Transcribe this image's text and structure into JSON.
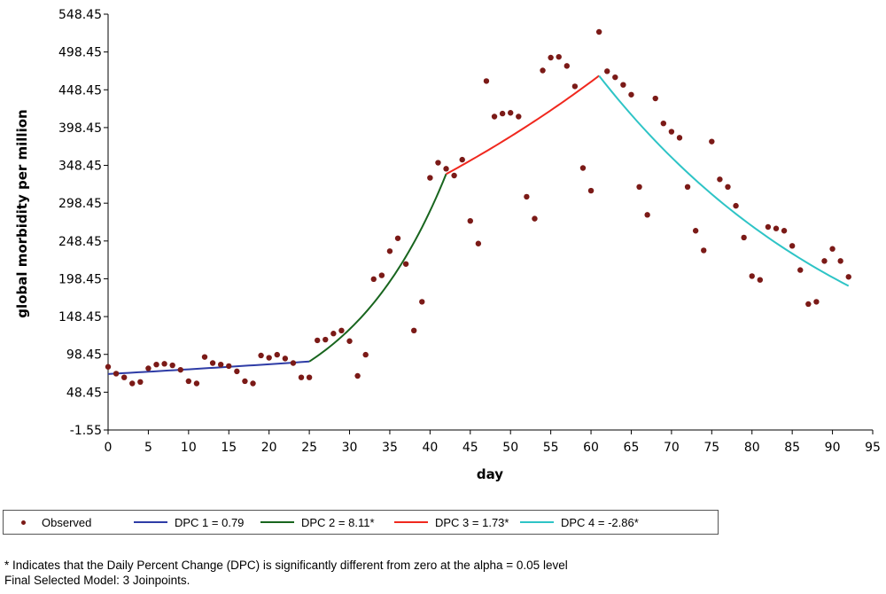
{
  "chart_data": {
    "type": "scatter",
    "xlabel": "day",
    "ylabel": "global morbidity per million",
    "xlim": [
      0,
      95
    ],
    "ylim": [
      -1.55,
      548.45
    ],
    "xticks": [
      "0",
      "5",
      "10",
      "15",
      "20",
      "25",
      "30",
      "35",
      "40",
      "45",
      "50",
      "55",
      "60",
      "65",
      "70",
      "75",
      "80",
      "85",
      "90",
      "95"
    ],
    "yticks": [
      "-1.55",
      "48.45",
      "98.45",
      "148.45",
      "198.45",
      "248.45",
      "298.45",
      "348.45",
      "398.45",
      "448.45",
      "498.45",
      "548.45"
    ],
    "observed": {
      "name": "Observed",
      "color": "#7B1A17",
      "x": [
        0,
        1,
        2,
        3,
        4,
        5,
        6,
        7,
        8,
        9,
        10,
        11,
        12,
        13,
        14,
        15,
        16,
        17,
        18,
        19,
        20,
        21,
        22,
        23,
        24,
        25,
        26,
        27,
        28,
        29,
        30,
        31,
        32,
        33,
        34,
        35,
        36,
        37,
        38,
        39,
        40,
        41,
        42,
        43,
        44,
        45,
        46,
        47,
        48,
        49,
        50,
        51,
        52,
        53,
        54,
        55,
        56,
        57,
        58,
        59,
        60,
        61,
        62,
        63,
        64,
        65,
        66,
        67,
        68,
        69,
        70,
        71,
        72,
        73,
        74,
        75,
        76,
        77,
        78,
        79,
        80,
        81,
        82,
        83,
        84,
        85,
        86,
        87,
        88,
        89,
        90,
        91,
        92
      ],
      "y": [
        82,
        73,
        68,
        60,
        62,
        80,
        85,
        86,
        84,
        78,
        63,
        60,
        95,
        87,
        85,
        83,
        76,
        63,
        60,
        97,
        94,
        98,
        93,
        87,
        68,
        68,
        117,
        118,
        126,
        130,
        116,
        70,
        98,
        198,
        203,
        235,
        252,
        218,
        130,
        168,
        332,
        352,
        344,
        335,
        356,
        275,
        245,
        460,
        413,
        417,
        418,
        413,
        307,
        278,
        474,
        491,
        492,
        480,
        453,
        345,
        315,
        525,
        473,
        465,
        455,
        442,
        320,
        283,
        437,
        404,
        393,
        385,
        320,
        262,
        236,
        380,
        330,
        320,
        295,
        253,
        202,
        197,
        267,
        265,
        262,
        242,
        210,
        165,
        168,
        222,
        238,
        222,
        201
      ]
    },
    "series": [
      {
        "name": "DPC 1 =  0.79",
        "color": "#2E3CA6",
        "x": [
          0,
          25
        ],
        "y": [
          72.5,
          89
        ]
      },
      {
        "name": "DPC 2 =  8.11*",
        "color": "#18651E",
        "x": [
          25,
          42
        ],
        "y": [
          89,
          337
        ]
      },
      {
        "name": "DPC 3 =  1.73*",
        "color": "#F0281E",
        "x": [
          42,
          61
        ],
        "y": [
          337,
          467
        ]
      },
      {
        "name": "DPC 4 = -2.86*",
        "color": "#2EC4C6",
        "x": [
          61,
          92
        ],
        "y": [
          467,
          189
        ]
      }
    ],
    "legend_position": "bottom",
    "grid": false
  },
  "notes": [
    "* Indicates that the Daily Percent Change (DPC) is significantly different from zero at the alpha = 0.05 level",
    "Final Selected Model: 3 Joinpoints."
  ]
}
